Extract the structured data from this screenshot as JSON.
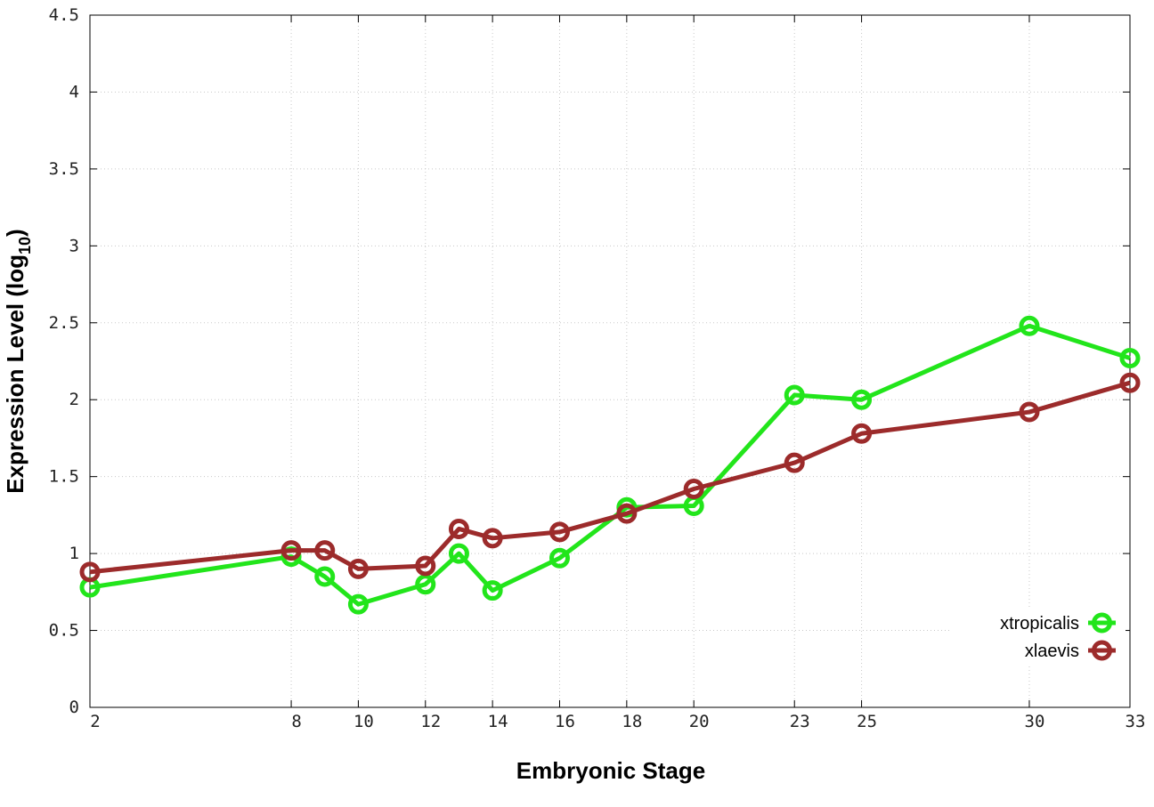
{
  "chart_data": {
    "type": "line",
    "xlabel": "Embryonic Stage",
    "ylabel_main": "Expression Level (log",
    "ylabel_sub": "10",
    "ylabel_close": ")",
    "ylim": [
      0,
      4.5
    ],
    "yticks": [
      0,
      0.5,
      1,
      1.5,
      2,
      2.5,
      3,
      3.5,
      4,
      4.5
    ],
    "ytick_labels": [
      "0",
      "0.5",
      "1",
      "1.5",
      "2",
      "2.5",
      "3",
      "3.5",
      "4",
      "4.5"
    ],
    "x": [
      2,
      8,
      9,
      10,
      12,
      13,
      14,
      16,
      18,
      20,
      23,
      25,
      30,
      33
    ],
    "xlim": [
      2,
      33
    ],
    "xticks": [
      2,
      8,
      10,
      12,
      14,
      16,
      18,
      20,
      23,
      25,
      30,
      33
    ],
    "xtick_labels": [
      "2",
      "8",
      "10",
      "12",
      "14",
      "16",
      "18",
      "20",
      "23",
      "25",
      "30",
      "33"
    ],
    "grid": true,
    "legend_position": "bottom-right",
    "series": [
      {
        "name": "xtropicalis",
        "color": "#22e51b",
        "values": [
          0.78,
          0.98,
          0.85,
          0.67,
          0.8,
          1.0,
          0.76,
          0.97,
          1.3,
          1.31,
          2.03,
          2.0,
          2.48,
          2.27
        ]
      },
      {
        "name": "xlaevis",
        "color": "#9c2b2b",
        "values": [
          0.88,
          1.02,
          1.02,
          0.9,
          0.92,
          1.16,
          1.1,
          1.14,
          1.26,
          1.42,
          1.59,
          1.78,
          1.92,
          2.11
        ]
      }
    ]
  }
}
